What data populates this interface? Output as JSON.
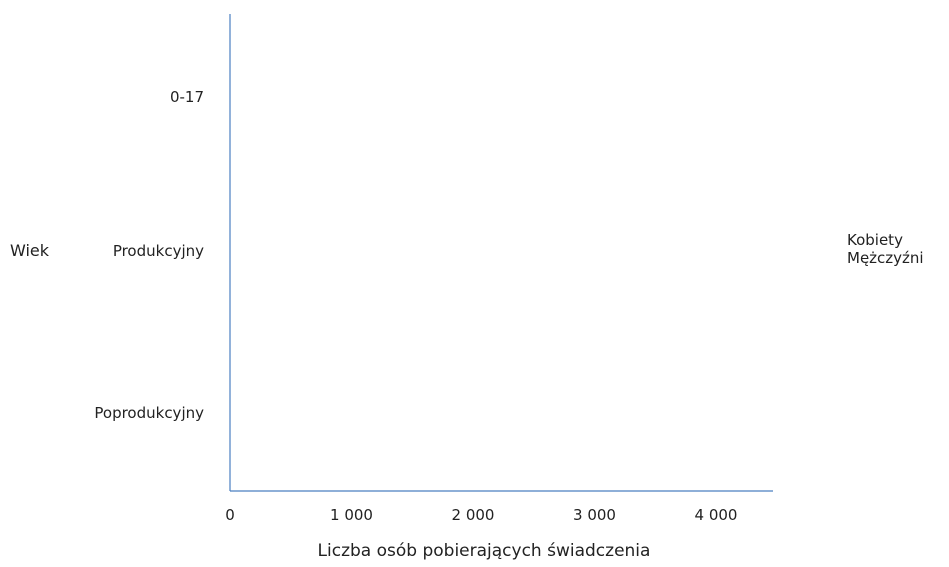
{
  "chart_data": {
    "type": "bar",
    "orientation": "horizontal",
    "xlabel": "Liczba osób pobierających świadczenia",
    "ylabel": "Wiek",
    "categories": [
      "0-17",
      "Produkcyjny",
      "Poprodukcyjny"
    ],
    "x_ticks": [
      0,
      1000,
      2000,
      3000,
      4000
    ],
    "x_tick_labels": [
      "0",
      "1 000",
      "2 000",
      "3 000",
      "4 000"
    ],
    "xlim": [
      0,
      4400
    ],
    "series": [
      {
        "name": "Kobiety",
        "values": [
          0,
          0,
          0
        ]
      },
      {
        "name": "Mężczyźni",
        "values": [
          0,
          0,
          0
        ]
      }
    ],
    "legend_position": "right",
    "grid": false,
    "axis_color": "#4a7fc1"
  },
  "legend": {
    "items": [
      "Kobiety",
      "Mężczyźni"
    ]
  }
}
